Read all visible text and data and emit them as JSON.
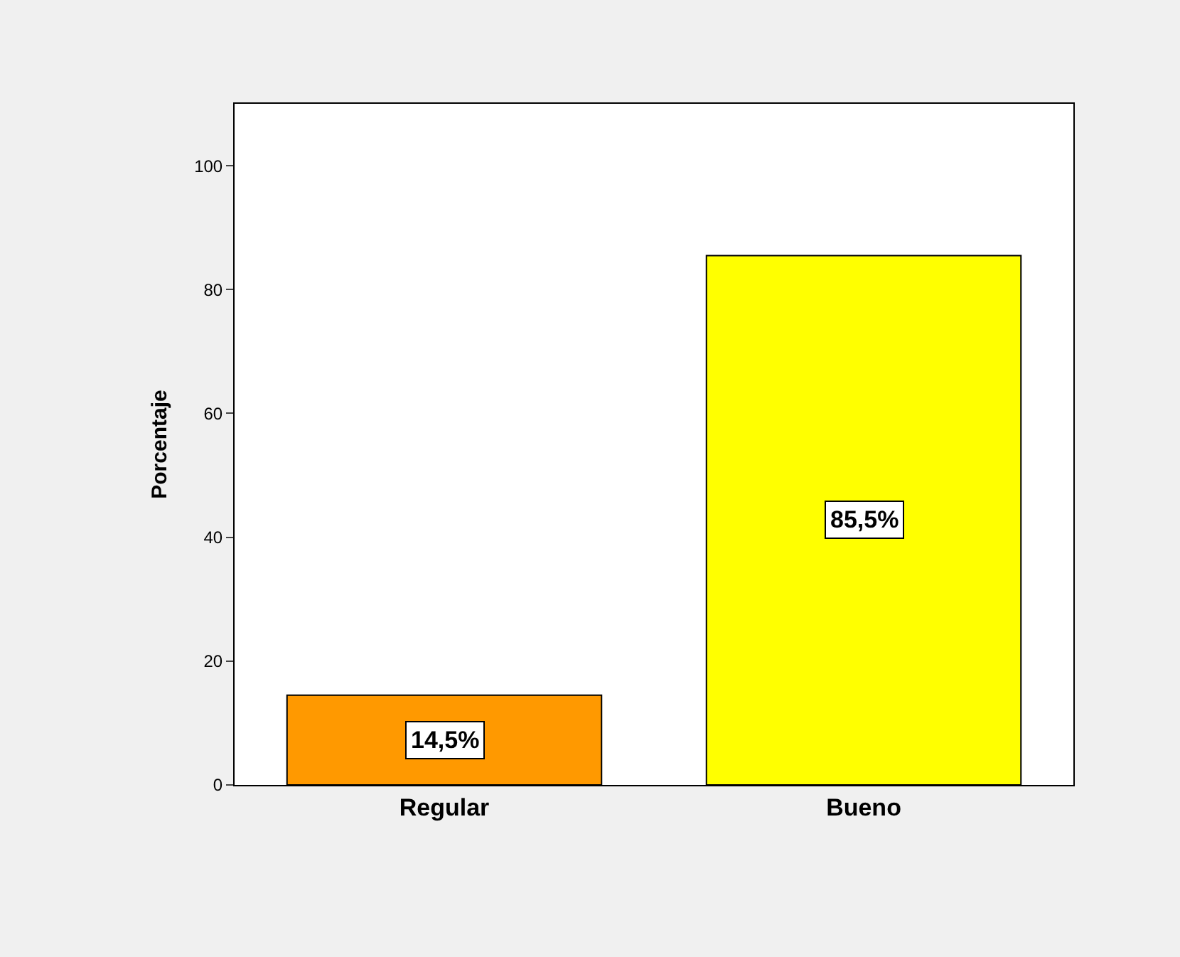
{
  "chart_data": {
    "type": "bar",
    "ylabel": "Porcentaje",
    "categories": [
      "Regular",
      "Bueno"
    ],
    "values": [
      14.5,
      85.5
    ],
    "colors": [
      "#ff9900",
      "#ffff00"
    ],
    "value_labels": [
      "14,5%",
      "85,5%"
    ],
    "ylim": [
      0,
      110
    ],
    "yticks": [
      0,
      20,
      40,
      60,
      80,
      100
    ],
    "legend": false
  }
}
